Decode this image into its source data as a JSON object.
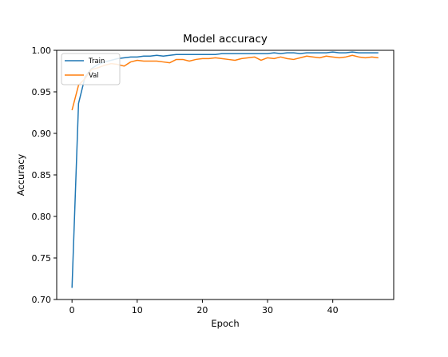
{
  "chart_data": {
    "type": "line",
    "title": "Model accuracy",
    "xlabel": "Epoch",
    "ylabel": "Accuracy",
    "xlim": [
      -2.35,
      49.35
    ],
    "ylim": [
      0.7,
      1.0
    ],
    "xticks": [
      0,
      10,
      20,
      30,
      40
    ],
    "xtick_labels": [
      "0",
      "10",
      "20",
      "30",
      "40"
    ],
    "yticks": [
      0.7,
      0.75,
      0.8,
      0.85,
      0.9,
      0.95,
      1.0
    ],
    "ytick_labels": [
      "0.70",
      "0.75",
      "0.80",
      "0.85",
      "0.90",
      "0.95",
      "1.00"
    ],
    "grid": false,
    "legend_position": "top-left",
    "x": [
      0,
      1,
      2,
      3,
      4,
      5,
      6,
      7,
      8,
      9,
      10,
      11,
      12,
      13,
      14,
      15,
      16,
      17,
      18,
      19,
      20,
      21,
      22,
      23,
      24,
      25,
      26,
      27,
      28,
      29,
      30,
      31,
      32,
      33,
      34,
      35,
      36,
      37,
      38,
      39,
      40,
      41,
      42,
      43,
      44,
      45,
      46,
      47
    ],
    "series": [
      {
        "name": "Train",
        "color": "#1f77b4",
        "values": [
          0.714,
          0.936,
          0.968,
          0.978,
          0.983,
          0.986,
          0.988,
          0.99,
          0.991,
          0.992,
          0.992,
          0.993,
          0.993,
          0.994,
          0.993,
          0.994,
          0.995,
          0.995,
          0.995,
          0.995,
          0.995,
          0.995,
          0.995,
          0.996,
          0.996,
          0.996,
          0.996,
          0.996,
          0.996,
          0.996,
          0.996,
          0.997,
          0.996,
          0.997,
          0.997,
          0.996,
          0.997,
          0.997,
          0.997,
          0.997,
          0.998,
          0.997,
          0.997,
          0.998,
          0.997,
          0.997,
          0.997,
          0.997
        ]
      },
      {
        "name": "Val",
        "color": "#ff7f0e",
        "values": [
          0.928,
          0.958,
          0.966,
          0.977,
          0.979,
          0.982,
          0.984,
          0.983,
          0.981,
          0.986,
          0.988,
          0.987,
          0.987,
          0.987,
          0.986,
          0.985,
          0.989,
          0.989,
          0.987,
          0.989,
          0.99,
          0.99,
          0.991,
          0.99,
          0.989,
          0.988,
          0.99,
          0.991,
          0.992,
          0.988,
          0.991,
          0.99,
          0.992,
          0.99,
          0.989,
          0.991,
          0.993,
          0.992,
          0.991,
          0.993,
          0.992,
          0.991,
          0.992,
          0.994,
          0.992,
          0.991,
          0.992,
          0.991
        ]
      }
    ]
  }
}
